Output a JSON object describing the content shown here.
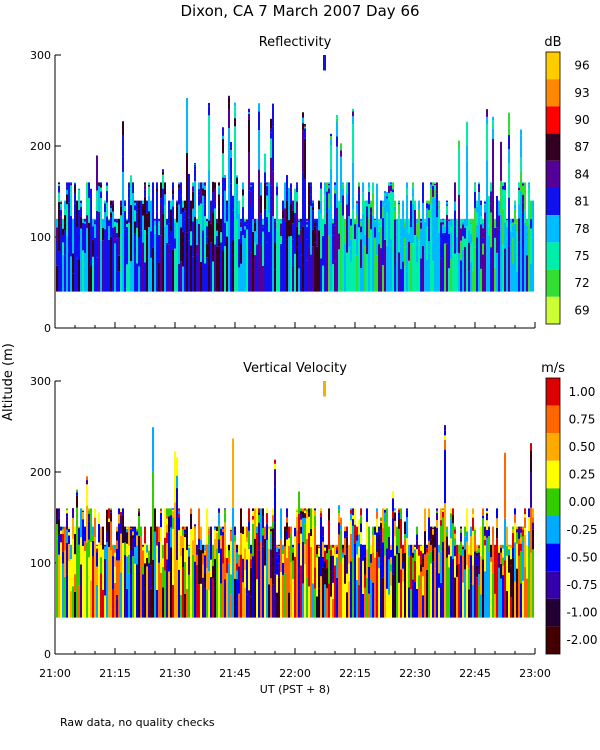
{
  "title": "Dixon, CA  7 March 2007  Day  66",
  "y_axis_label": "Altitude (m)",
  "footnote": "Raw data, no quality checks",
  "chart_data": [
    {
      "type": "heatmap",
      "title": "Reflectivity",
      "xlabel": "UT  (PST + 8)",
      "ylabel": "Altitude (m)",
      "x_ticks": [
        "21:00",
        "21:15",
        "21:30",
        "21:45",
        "22:00",
        "22:15",
        "22:30",
        "22:45",
        "23:00"
      ],
      "y_ticks": [
        "0",
        "100",
        "200",
        "300"
      ],
      "ylim": [
        0,
        300
      ],
      "colorbar": {
        "unit": "dB",
        "labels": [
          "96",
          "93",
          "90",
          "87",
          "84",
          "81",
          "78",
          "75",
          "72",
          "69"
        ],
        "colors": [
          "#ffcc00",
          "#ff8800",
          "#ff0000",
          "#330022",
          "#550099",
          "#1111ee",
          "#00bbff",
          "#00eeaa",
          "#33dd33",
          "#ccff33"
        ]
      },
      "data_base_altitude_m": 40,
      "typical_echo_top_m": 140,
      "max_echo_top_m": 260
    },
    {
      "type": "heatmap",
      "title": "Vertical Velocity",
      "xlabel": "UT  (PST + 8)",
      "ylabel": "Altitude (m)",
      "x_ticks": [
        "21:00",
        "21:15",
        "21:30",
        "21:45",
        "22:00",
        "22:15",
        "22:30",
        "22:45",
        "23:00"
      ],
      "y_ticks": [
        "0",
        "100",
        "200",
        "300"
      ],
      "ylim": [
        0,
        300
      ],
      "colorbar": {
        "unit": "m/s",
        "labels": [
          "1.00",
          "0.75",
          "0.50",
          "0.25",
          "0.00",
          "-0.25",
          "-0.50",
          "-0.75",
          "-1.00",
          "-2.00"
        ],
        "colors": [
          "#dd0000",
          "#ff6600",
          "#ffaa00",
          "#ffff00",
          "#33cc00",
          "#00aaff",
          "#0000ff",
          "#3300aa",
          "#220033",
          "#440000"
        ]
      },
      "data_base_altitude_m": 40,
      "typical_echo_top_m": 140,
      "max_echo_top_m": 260
    }
  ]
}
